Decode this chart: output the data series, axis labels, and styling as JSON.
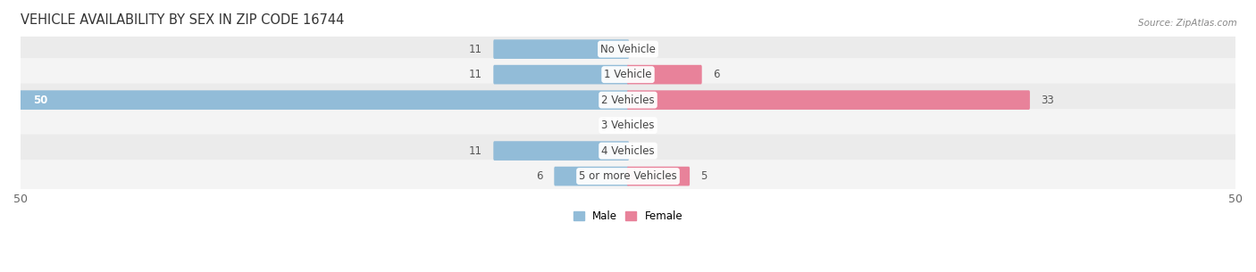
{
  "title": "VEHICLE AVAILABILITY BY SEX IN ZIP CODE 16744",
  "source": "Source: ZipAtlas.com",
  "categories": [
    "No Vehicle",
    "1 Vehicle",
    "2 Vehicles",
    "3 Vehicles",
    "4 Vehicles",
    "5 or more Vehicles"
  ],
  "male_values": [
    11,
    11,
    50,
    0,
    11,
    6
  ],
  "female_values": [
    0,
    6,
    33,
    0,
    0,
    5
  ],
  "male_color": "#92bcd8",
  "female_color": "#e8829a",
  "male_color_strong": "#5a9fc8",
  "female_color_strong": "#d95b7a",
  "row_color_odd": "#ebebeb",
  "row_color_even": "#f4f4f4",
  "axis_max": 50,
  "legend_male": "Male",
  "legend_female": "Female",
  "title_fontsize": 10.5,
  "label_fontsize": 8.5,
  "tick_fontsize": 9,
  "value_fontsize": 8.5
}
